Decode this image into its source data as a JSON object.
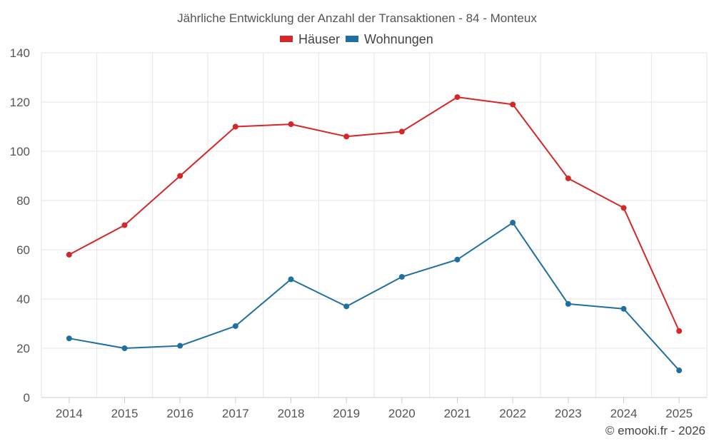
{
  "chart_data": {
    "type": "line",
    "title": "Jährliche Entwicklung der Anzahl der Transaktionen - 84 - Monteux",
    "categories": [
      "2014",
      "2015",
      "2016",
      "2017",
      "2018",
      "2019",
      "2020",
      "2021",
      "2022",
      "2023",
      "2024",
      "2025"
    ],
    "series": [
      {
        "name": "Häuser",
        "color": "#d62728",
        "values": [
          58,
          70,
          90,
          110,
          111,
          106,
          108,
          122,
          119,
          89,
          77,
          27
        ]
      },
      {
        "name": "Wohnungen",
        "color": "#1f6fa0",
        "values": [
          24,
          20,
          21,
          29,
          48,
          37,
          49,
          56,
          71,
          38,
          36,
          11
        ]
      }
    ],
    "ylim": [
      0,
      140
    ],
    "yticks": [
      0,
      20,
      40,
      60,
      80,
      100,
      120,
      140
    ],
    "grid": true,
    "legend": "top-center",
    "xlabel": "",
    "ylabel": ""
  },
  "credit": "© emooki.fr - 2026"
}
